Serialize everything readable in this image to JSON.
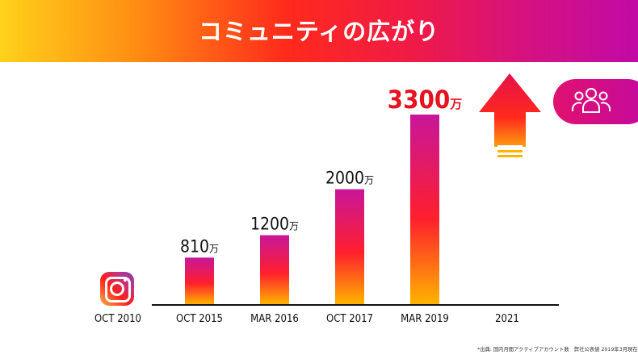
{
  "header": {
    "title": "コミュニティの広がり"
  },
  "footnote": "*出典: 国内月間アクティブアカウント数　弊社公表値 2019年3月現在",
  "icons": {
    "logo": "instagram-logo-icon",
    "people": "people-group-icon",
    "arrow": "up-arrow-icon"
  },
  "colors": {
    "bar_top": "#c8169a",
    "bar_mid": "#ff1f2d",
    "bar_bottom": "#ffb300",
    "highlight_text": "#e8121f"
  },
  "chart_data": {
    "type": "bar",
    "title": "",
    "xlabel": "",
    "ylabel": "",
    "unit": "万",
    "categories": [
      "OCT 2010",
      "OCT 2015",
      "MAR 2016",
      "OCT 2017",
      "MAR 2019",
      "2021"
    ],
    "values": [
      null,
      810,
      1200,
      2000,
      3300,
      null
    ],
    "value_labels": [
      "",
      "810",
      "1200",
      "2000",
      "3300",
      ""
    ],
    "highlight_index": 4,
    "arrow_index": 5,
    "ylim": [
      0,
      3300
    ],
    "grid": false,
    "legend": "none"
  }
}
